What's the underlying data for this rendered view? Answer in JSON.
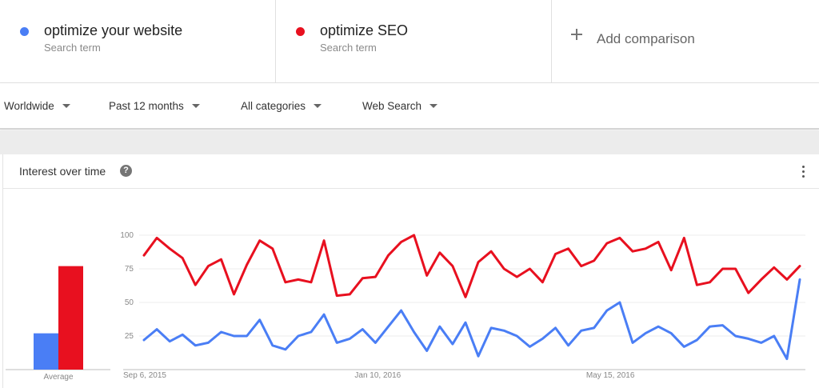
{
  "terms": [
    {
      "name": "optimize your website",
      "sub": "Search term",
      "color": "#4a7ef5"
    },
    {
      "name": "optimize SEO",
      "sub": "Search term",
      "color": "#e8101f"
    }
  ],
  "add_comparison": {
    "label": "Add comparison",
    "icon": "plus-icon"
  },
  "filters": {
    "region": "Worldwide",
    "period": "Past 12 months",
    "category": "All categories",
    "search_type": "Web Search"
  },
  "card": {
    "title": "Interest over time",
    "help_icon": "question-mark-icon",
    "help_glyph": "?",
    "more_icon": "more-vertical-icon"
  },
  "chart_data": [
    {
      "type": "bar",
      "categories": [
        "Average"
      ],
      "series": [
        {
          "name": "optimize your website",
          "values": [
            27
          ],
          "color": "#4a7ef5"
        },
        {
          "name": "optimize SEO",
          "values": [
            77
          ],
          "color": "#e8101f"
        }
      ],
      "ylim": [
        0,
        100
      ]
    },
    {
      "type": "line",
      "x_tick_labels": [
        "Sep 6, 2015",
        "Jan 10, 2016",
        "May 15, 2016"
      ],
      "y_ticks": [
        25,
        50,
        75,
        100
      ],
      "ylim": [
        0,
        100
      ],
      "grid": true,
      "series": [
        {
          "name": "optimize your website",
          "color": "#4a7ef5",
          "values": [
            22,
            30,
            21,
            26,
            18,
            20,
            28,
            25,
            25,
            37,
            18,
            15,
            25,
            28,
            41,
            20,
            23,
            30,
            20,
            32,
            44,
            28,
            14,
            32,
            19,
            35,
            10,
            31,
            29,
            25,
            17,
            23,
            31,
            18,
            29,
            31,
            44,
            50,
            20,
            27,
            32,
            27,
            17,
            22,
            32,
            33,
            25,
            23,
            20,
            25,
            8,
            67
          ]
        },
        {
          "name": "optimize SEO",
          "color": "#e8101f",
          "values": [
            85,
            98,
            90,
            83,
            63,
            77,
            82,
            56,
            78,
            96,
            90,
            65,
            67,
            65,
            96,
            55,
            56,
            68,
            69,
            85,
            95,
            100,
            70,
            87,
            77,
            54,
            80,
            88,
            75,
            69,
            75,
            65,
            86,
            90,
            77,
            81,
            94,
            98,
            88,
            90,
            95,
            74,
            98,
            63,
            65,
            75,
            75,
            57,
            67,
            76,
            67,
            77
          ]
        }
      ]
    }
  ]
}
